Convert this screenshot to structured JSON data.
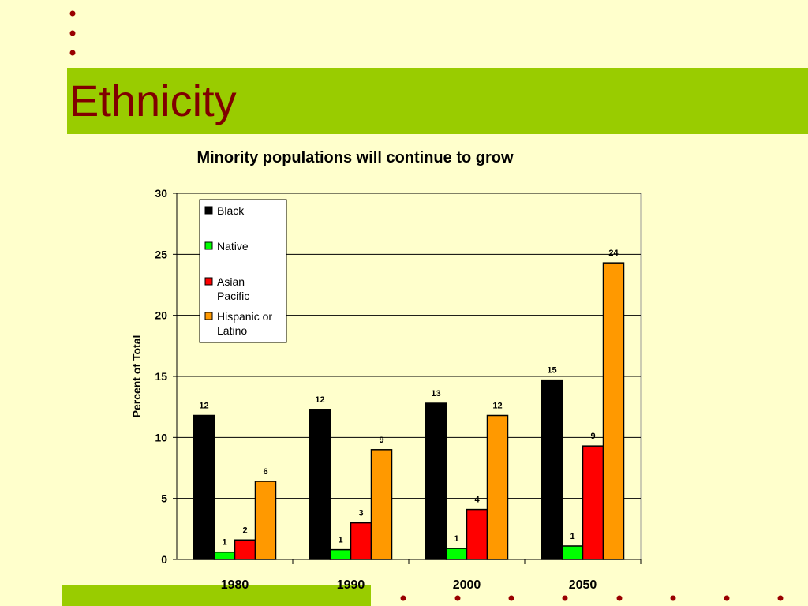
{
  "slide": {
    "title": "Ethnicity"
  },
  "colors": {
    "background": "#ffffcc",
    "band": "#99cc00",
    "title": "#800000",
    "dot": "#990000"
  },
  "chart_data": {
    "type": "bar",
    "title": "Minority populations will continue to grow",
    "xlabel": "",
    "ylabel": "Percent of Total",
    "ylim": [
      0,
      30
    ],
    "yticks": [
      0,
      5,
      10,
      15,
      20,
      25,
      30
    ],
    "grid": true,
    "legend_position": "top-left",
    "categories": [
      "1980",
      "1990",
      "2000",
      "2050"
    ],
    "series": [
      {
        "name": "Black",
        "color": "#000000",
        "values": [
          11.8,
          12.3,
          12.8,
          14.7
        ],
        "labels": [
          "12",
          "12",
          "13",
          "15"
        ]
      },
      {
        "name": "Native",
        "color": "#00ff00",
        "values": [
          0.6,
          0.8,
          0.9,
          1.1
        ],
        "labels": [
          "1",
          "1",
          "1",
          "1"
        ]
      },
      {
        "name": "Asian Pacific",
        "color": "#ff0000",
        "values": [
          1.6,
          3.0,
          4.1,
          9.3
        ],
        "labels": [
          "2",
          "3",
          "4",
          "9"
        ]
      },
      {
        "name": "Hispanic or Latino",
        "color": "#ff9900",
        "values": [
          6.4,
          9.0,
          11.8,
          24.3
        ],
        "labels": [
          "6",
          "9",
          "12",
          "24"
        ]
      }
    ]
  }
}
